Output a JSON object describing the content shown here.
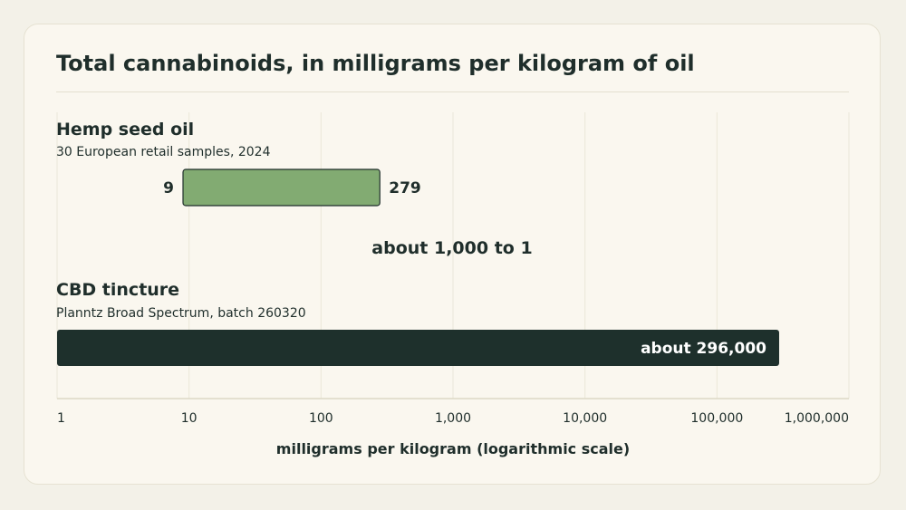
{
  "chart_data": {
    "type": "bar",
    "subtype": "range-bar",
    "title": "Total cannabinoids, in milligrams per kilogram of oil",
    "xlabel": "milligrams per kilogram (logarithmic scale)",
    "x_scale": "log",
    "xlim": [
      1,
      1000000
    ],
    "ticks": [
      {
        "value": 1,
        "label": "1"
      },
      {
        "value": 10,
        "label": "10"
      },
      {
        "value": 100,
        "label": "100"
      },
      {
        "value": 1000,
        "label": "1,000"
      },
      {
        "value": 10000,
        "label": "10,000"
      },
      {
        "value": 100000,
        "label": "100,000"
      },
      {
        "value": 1000000,
        "label": "1,000,000"
      }
    ],
    "grid": true,
    "series": [
      {
        "name": "Hemp seed oil",
        "subtitle": "30 European retail samples, 2024",
        "start": 9,
        "end": 279,
        "start_label": "9",
        "end_label": "279",
        "color": "#82ab72"
      },
      {
        "name": "CBD tincture",
        "subtitle": "Planntz Broad Spectrum, batch 260320",
        "start": 1,
        "end": 296000,
        "end_label": "about 296,000",
        "color": "#1e302c"
      }
    ],
    "annotation": "about 1,000 to 1"
  }
}
